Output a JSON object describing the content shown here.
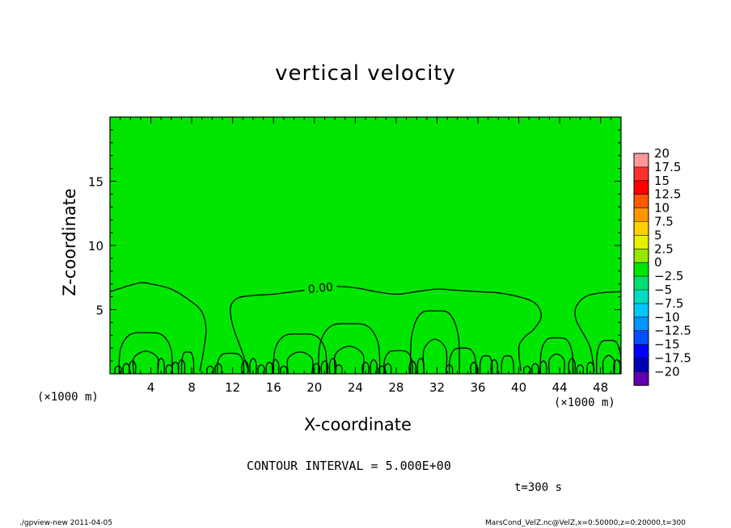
{
  "chart_data": {
    "type": "contour",
    "title": "vertical velocity",
    "xlabel": "X-coordinate",
    "ylabel": "Z-coordinate",
    "x_unit_left": "(×1000 m)",
    "x_unit_right": "(×1000 m)",
    "xlim": [
      0,
      50
    ],
    "ylim": [
      0,
      20
    ],
    "x_ticks": [
      4,
      8,
      12,
      16,
      20,
      24,
      28,
      32,
      36,
      40,
      44,
      48
    ],
    "y_ticks": [
      5,
      10,
      15
    ],
    "contour_label": "0.00",
    "contour_interval_text": "CONTOUR INTERVAL = 5.000E+00",
    "time_text": "t=300 s",
    "fill_color": "#00e600",
    "colorbar": {
      "labels": [
        "20",
        "17.5",
        "15",
        "12.5",
        "10",
        "7.5",
        "5",
        "2.5",
        "0",
        "−2.5",
        "−5",
        "−7.5",
        "−10",
        "−12.5",
        "−15",
        "−17.5",
        "−20"
      ],
      "colors": [
        "#ff9999",
        "#ff3030",
        "#ff0000",
        "#ff5a00",
        "#ff9600",
        "#ffd200",
        "#e6f000",
        "#96e600",
        "#00e600",
        "#00e070",
        "#00ddc0",
        "#00c8ff",
        "#0096ff",
        "#0050ff",
        "#0000ff",
        "#0000b4",
        "#6000b0"
      ]
    },
    "contour_0_upper": [
      [
        0,
        6.4
      ],
      [
        2,
        6.9
      ],
      [
        3,
        7.1
      ],
      [
        4,
        7.0
      ],
      [
        6,
        6.6
      ],
      [
        8,
        5.6
      ],
      [
        9,
        4.8
      ],
      [
        9.4,
        3.5
      ],
      [
        9.2,
        2.0
      ],
      [
        8.8,
        0.2
      ]
    ],
    "contour_0_mid": [
      [
        13.6,
        0.2
      ],
      [
        12.8,
        2.0
      ],
      [
        12,
        3.8
      ],
      [
        11.8,
        5.2
      ],
      [
        12.5,
        5.9
      ],
      [
        14,
        6.1
      ],
      [
        16,
        6.2
      ],
      [
        18,
        6.4
      ],
      [
        20,
        6.6
      ],
      [
        22,
        6.8
      ],
      [
        24,
        6.7
      ],
      [
        26,
        6.4
      ],
      [
        28,
        6.2
      ],
      [
        30,
        6.4
      ],
      [
        32,
        6.6
      ],
      [
        34,
        6.5
      ],
      [
        36,
        6.4
      ],
      [
        38,
        6.3
      ],
      [
        40,
        6.0
      ],
      [
        41.6,
        5.5
      ],
      [
        42.2,
        4.5
      ],
      [
        41.5,
        3.5
      ],
      [
        40.5,
        2.8
      ],
      [
        40,
        2.0
      ],
      [
        40.2,
        0.2
      ]
    ],
    "contour_0_right": [
      [
        50,
        6.4
      ],
      [
        48,
        6.3
      ],
      [
        46.5,
        6.0
      ],
      [
        45.6,
        5.2
      ],
      [
        45.6,
        4.2
      ],
      [
        46.4,
        3.0
      ],
      [
        47,
        2.0
      ],
      [
        47.4,
        0.2
      ]
    ],
    "bumps": [
      [
        3.5,
        2.6,
        3.2
      ],
      [
        7.6,
        0.6,
        1.7
      ],
      [
        11.8,
        1.3,
        1.6
      ],
      [
        18.6,
        2.6,
        3.1
      ],
      [
        23.4,
        3.0,
        3.9
      ],
      [
        28.2,
        1.4,
        1.8
      ],
      [
        31.8,
        2.4,
        4.9
      ],
      [
        34.5,
        1.3,
        2.0
      ],
      [
        36.8,
        0.6,
        1.4
      ],
      [
        38.9,
        0.6,
        1.4
      ],
      [
        43.7,
        1.6,
        2.8
      ],
      [
        48.8,
        1.2,
        2.6
      ]
    ],
    "small_bumps": [
      0.8,
      1.6,
      2.2,
      5.0,
      5.8,
      6.4,
      7.0,
      9.8,
      10.6,
      13.2,
      14.0,
      14.8,
      15.6,
      16.2,
      17.0,
      20.2,
      21.0,
      21.8,
      22.4,
      25.0,
      25.8,
      26.6,
      27.2,
      29.6,
      30.4,
      33.2,
      35.6,
      37.6,
      40.8,
      41.6,
      42.4,
      45.2,
      46.0,
      47.0,
      49.6
    ]
  },
  "footer": {
    "left": "./gpview-new   2011-04-05",
    "right": "MarsCond_VelZ.nc@VelZ,x=0:50000,z=0:20000,t=300"
  }
}
